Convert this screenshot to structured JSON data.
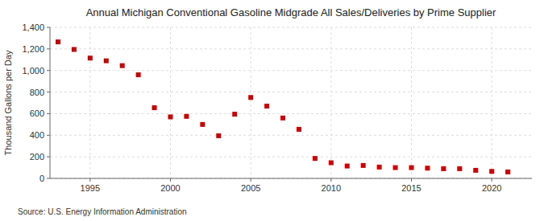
{
  "chart_data": {
    "type": "scatter",
    "title": "Annual Michigan Conventional Gasoline Midgrade All Sales/Deliveries by Prime Supplier",
    "ylabel": "Thousand Gallons per Day",
    "source": "Source: U.S. Energy Information Administration",
    "x": [
      1993,
      1994,
      1995,
      1996,
      1997,
      1998,
      1999,
      2000,
      2001,
      2002,
      2003,
      2004,
      2005,
      2006,
      2007,
      2008,
      2009,
      2010,
      2011,
      2012,
      2013,
      2014,
      2015,
      2016,
      2017,
      2018,
      2019,
      2020,
      2021
    ],
    "values": [
      1265,
      1195,
      1115,
      1090,
      1045,
      960,
      655,
      570,
      575,
      500,
      395,
      595,
      750,
      670,
      560,
      455,
      185,
      145,
      115,
      120,
      105,
      100,
      100,
      95,
      90,
      90,
      75,
      65,
      60
    ],
    "color": "#cc0000",
    "marker": "square",
    "grid": true,
    "xlim": [
      1992.5,
      2022.5
    ],
    "xticks": [
      1995,
      2000,
      2005,
      2010,
      2015,
      2020
    ],
    "ylim": [
      0,
      1400
    ],
    "yticks": [
      0,
      200,
      400,
      600,
      800,
      {
        "value": 1000,
        "label": "1,000"
      },
      {
        "value": 1200,
        "label": "1,200"
      },
      {
        "value": 1400,
        "label": "1,400"
      }
    ]
  }
}
